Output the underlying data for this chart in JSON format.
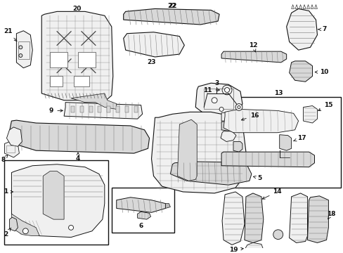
{
  "bg_color": "#ffffff",
  "fig_width": 4.89,
  "fig_height": 3.6,
  "dpi": 100,
  "lc": "#111111",
  "fc_light": "#f0f0f0",
  "fc_mid": "#d8d8d8",
  "fc_dark": "#bbbbbb"
}
